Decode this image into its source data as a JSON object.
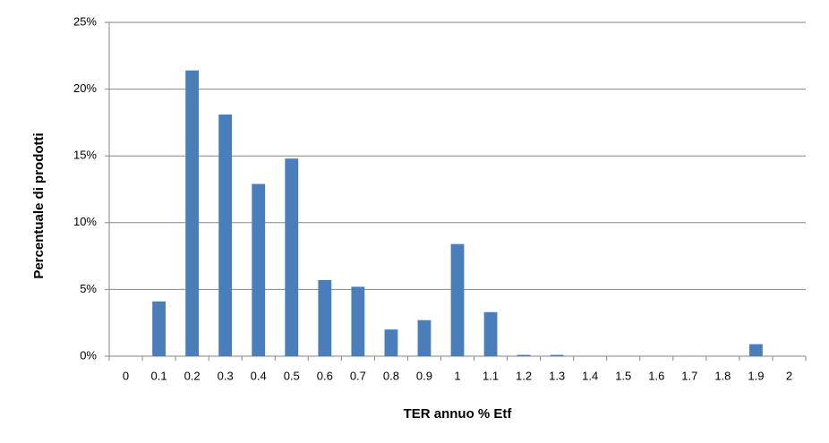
{
  "chart_data": {
    "type": "bar",
    "x_label": "TER annuo % Etf",
    "y_label": "Percentuale di prodotti",
    "categories": [
      "0",
      "0.1",
      "0.2",
      "0.3",
      "0.4",
      "0.5",
      "0.6",
      "0.7",
      "0.8",
      "0.9",
      "1",
      "1.1",
      "1.2",
      "1.3",
      "1.4",
      "1.5",
      "1.6",
      "1.7",
      "1.8",
      "1.9",
      "2"
    ],
    "values": [
      0,
      4.1,
      21.4,
      18.1,
      12.9,
      14.8,
      5.7,
      5.2,
      2.0,
      2.7,
      8.4,
      3.3,
      0.1,
      0.1,
      0,
      0,
      0,
      0,
      0,
      0.9,
      0
    ],
    "color": "#4a7ebb",
    "ylim": [
      0,
      25
    ],
    "yticks": [
      {
        "value": 0,
        "label": "0%"
      },
      {
        "value": 5,
        "label": "5%"
      },
      {
        "value": 10,
        "label": "10%"
      },
      {
        "value": 15,
        "label": "15%"
      },
      {
        "value": 20,
        "label": "20%"
      },
      {
        "value": 25,
        "label": "25%"
      }
    ],
    "grid": true
  }
}
